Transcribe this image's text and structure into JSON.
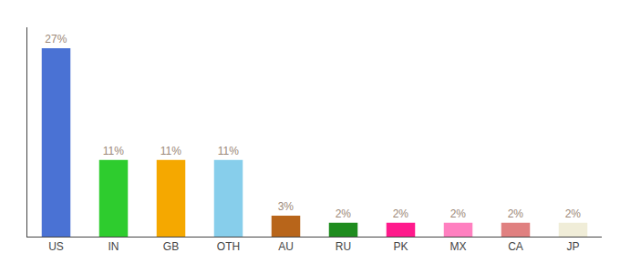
{
  "chart_data": {
    "type": "bar",
    "categories": [
      "US",
      "IN",
      "GB",
      "OTH",
      "AU",
      "RU",
      "PK",
      "MX",
      "CA",
      "JP"
    ],
    "values": [
      27,
      11,
      11,
      11,
      3,
      2,
      2,
      2,
      2,
      2
    ],
    "value_labels": [
      "27%",
      "11%",
      "11%",
      "11%",
      "3%",
      "2%",
      "2%",
      "2%",
      "2%",
      "2%"
    ],
    "colors": [
      "#4a72d4",
      "#2ecc2e",
      "#f5a800",
      "#87ceeb",
      "#b8651a",
      "#1e8c1e",
      "#ff1a8c",
      "#ff80c0",
      "#e08080",
      "#f0edd8"
    ],
    "ylim": [
      0,
      30
    ],
    "grid": false,
    "data_labels": true,
    "tick_labels": "x"
  }
}
